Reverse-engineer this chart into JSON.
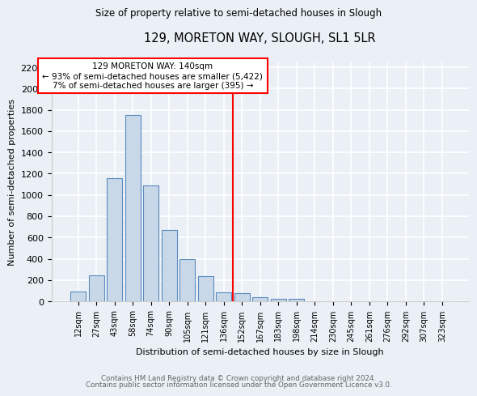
{
  "title": "129, MORETON WAY, SLOUGH, SL1 5LR",
  "subtitle": "Size of property relative to semi-detached houses in Slough",
  "xlabel": "Distribution of semi-detached houses by size in Slough",
  "ylabel": "Number of semi-detached properties",
  "footnote1": "Contains HM Land Registry data © Crown copyright and database right 2024.",
  "footnote2": "Contains public sector information licensed under the Open Government Licence v3.0.",
  "bar_labels": [
    "12sqm",
    "27sqm",
    "43sqm",
    "58sqm",
    "74sqm",
    "90sqm",
    "105sqm",
    "121sqm",
    "136sqm",
    "152sqm",
    "167sqm",
    "183sqm",
    "198sqm",
    "214sqm",
    "230sqm",
    "245sqm",
    "261sqm",
    "276sqm",
    "292sqm",
    "307sqm",
    "323sqm"
  ],
  "bar_values": [
    90,
    245,
    1160,
    1750,
    1090,
    670,
    400,
    235,
    85,
    80,
    35,
    25,
    20,
    0,
    0,
    0,
    0,
    0,
    0,
    0,
    0
  ],
  "bar_color": "#c8d8e8",
  "bar_edge_color": "#5a8abf",
  "annotation_text1": "129 MORETON WAY: 140sqm",
  "annotation_text2": "← 93% of semi-detached houses are smaller (5,422)",
  "annotation_text3": "7% of semi-detached houses are larger (395) →",
  "line_color": "red",
  "annotation_box_color": "white",
  "annotation_box_edge": "red",
  "ylim": [
    0,
    2250
  ],
  "yticks": [
    0,
    200,
    400,
    600,
    800,
    1000,
    1200,
    1400,
    1600,
    1800,
    2000,
    2200
  ],
  "bg_color": "#eaf0f6",
  "grid_color": "white"
}
